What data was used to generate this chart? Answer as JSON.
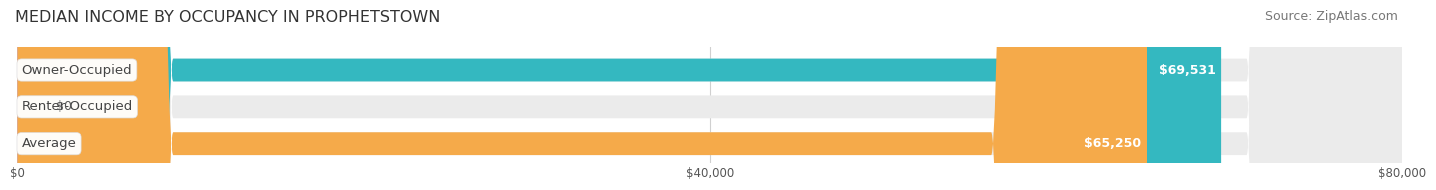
{
  "title": "MEDIAN INCOME BY OCCUPANCY IN PROPHETSTOWN",
  "source": "Source: ZipAtlas.com",
  "categories": [
    "Owner-Occupied",
    "Renter-Occupied",
    "Average"
  ],
  "values": [
    69531,
    0,
    65250
  ],
  "bar_colors": [
    "#34b8c0",
    "#c4a8d8",
    "#f5aa4a"
  ],
  "bar_bg_color": "#ebebeb",
  "value_labels": [
    "$69,531",
    "$0",
    "$65,250"
  ],
  "x_ticks": [
    0,
    40000,
    80000
  ],
  "x_tick_labels": [
    "$0",
    "$40,000",
    "$80,000"
  ],
  "x_max": 80000,
  "title_fontsize": 11.5,
  "source_fontsize": 9,
  "label_fontsize": 9.5,
  "value_fontsize": 9,
  "background_color": "#ffffff",
  "bar_height": 0.62,
  "rounding_size": 9000,
  "bar_gap": 0.38
}
